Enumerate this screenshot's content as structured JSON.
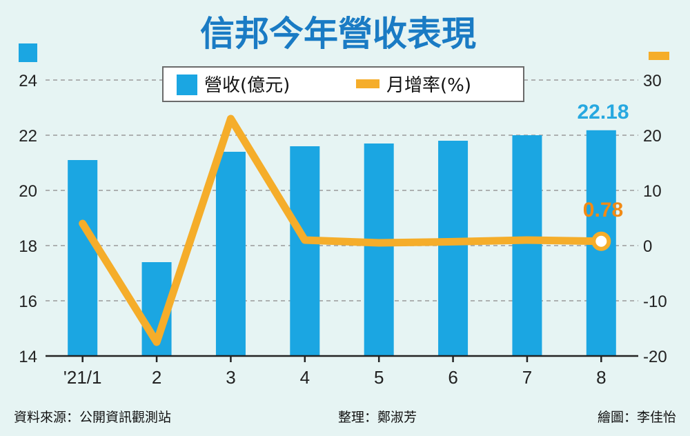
{
  "chart_data": {
    "type": "bar+line",
    "title": "信邦今年營收表現",
    "categories": [
      "'21/1",
      "2",
      "3",
      "4",
      "5",
      "6",
      "7",
      "8"
    ],
    "series": [
      {
        "name": "營收(億元)",
        "type": "bar",
        "axis": "left",
        "color": "#1ba6e2",
        "values": [
          21.1,
          17.4,
          21.4,
          21.6,
          21.7,
          21.8,
          22.0,
          22.18
        ]
      },
      {
        "name": "月增率(%)",
        "type": "line",
        "axis": "right",
        "color": "#f5ad2a",
        "values": [
          4.0,
          -17.5,
          23.0,
          1.0,
          0.5,
          0.7,
          1.0,
          0.78
        ]
      }
    ],
    "left_axis": {
      "min": 14,
      "max": 24,
      "ticks": [
        "14",
        "16",
        "18",
        "20",
        "22",
        "24"
      ]
    },
    "right_axis": {
      "min": -20,
      "max": 30,
      "ticks": [
        "-20",
        "-10",
        "0",
        "10",
        "20",
        "30"
      ]
    },
    "annotations": {
      "last_bar_label": "22.18",
      "last_line_label": "0.78"
    },
    "grid": "horizontal dashed",
    "legend": {
      "placement": "top-center",
      "labels": [
        "營收(億元)",
        "月增率(%)"
      ]
    }
  },
  "footer": {
    "source": "資料來源：公開資訊觀測站",
    "compiled_by": "整理：鄭淑芳",
    "graphic_by": "繪圖：李佳怡"
  },
  "colors": {
    "background": "#e6f4f3",
    "bar": "#1ba6e2",
    "line": "#f5ad2a",
    "title": "#1a7bc4",
    "line_label": "#f28a14",
    "bar_label": "#27a8e0"
  }
}
